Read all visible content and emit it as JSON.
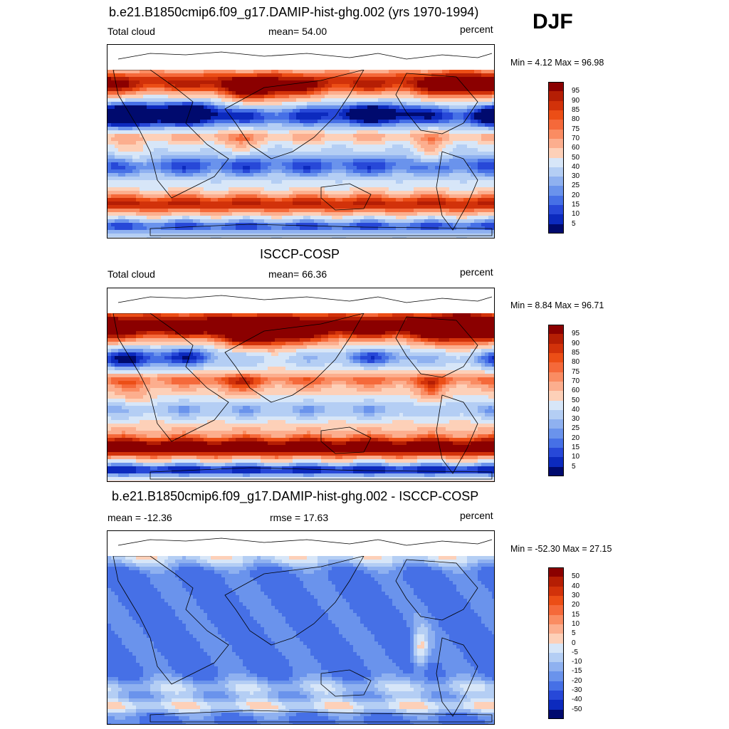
{
  "season": "DJF",
  "panels": [
    {
      "title": "b.e21.B1850cmip6.f09_g17.DAMIP-hist-ghg.002 (yrs 1970-1994)",
      "left_label": "Total cloud",
      "center_label": "mean=  54.00",
      "right_label": "percent",
      "minmax": "Min =   4.12 Max =  96.98",
      "colorbar_labels": [
        "95",
        "90",
        "85",
        "80",
        "75",
        "70",
        "60",
        "50",
        "40",
        "30",
        "25",
        "20",
        "15",
        "10",
        "5"
      ]
    },
    {
      "title": "ISCCP-COSP",
      "left_label": "Total cloud",
      "center_label": "mean=  66.36",
      "right_label": "percent",
      "minmax": "Min =   8.84 Max =  96.71",
      "colorbar_labels": [
        "95",
        "90",
        "85",
        "80",
        "75",
        "70",
        "60",
        "50",
        "40",
        "30",
        "25",
        "20",
        "15",
        "10",
        "5"
      ]
    },
    {
      "title": "b.e21.B1850cmip6.f09_g17.DAMIP-hist-ghg.002 - ISCCP-COSP",
      "left_label": "mean = -12.36",
      "center_label": "rmse =  17.63",
      "right_label": "percent",
      "minmax": "Min = -52.30 Max =  27.15",
      "colorbar_labels": [
        "50",
        "40",
        "30",
        "20",
        "15",
        "10",
        "5",
        "0",
        "-5",
        "-10",
        "-15",
        "-20",
        "-30",
        "-40",
        "-50"
      ]
    }
  ],
  "colors": {
    "scale": [
      "#8b0000",
      "#b51e04",
      "#d2320a",
      "#ec4e16",
      "#f5693a",
      "#fa8c62",
      "#fcae8e",
      "#fdd0b8",
      "#fef1e6",
      "#d7e6f8",
      "#b4cef4",
      "#8fb1f0",
      "#6a93ec",
      "#4670e6",
      "#2748d8",
      "#0c2abe",
      "#001a96",
      "#000a6e"
    ],
    "land_outline": "#000000"
  },
  "chart_data": [
    {
      "type": "heatmap",
      "title": "b.e21.B1850cmip6.f09_g17.DAMIP-hist-ghg.002 (yrs 1970-1994)",
      "variable": "Total cloud",
      "units": "percent",
      "mean": 54.0,
      "min": 4.12,
      "max": 96.98,
      "levels": [
        5,
        10,
        15,
        20,
        25,
        30,
        40,
        50,
        60,
        70,
        75,
        80,
        85,
        90,
        95
      ]
    },
    {
      "type": "heatmap",
      "title": "ISCCP-COSP",
      "variable": "Total cloud",
      "units": "percent",
      "mean": 66.36,
      "min": 8.84,
      "max": 96.71,
      "levels": [
        5,
        10,
        15,
        20,
        25,
        30,
        40,
        50,
        60,
        70,
        75,
        80,
        85,
        90,
        95
      ]
    },
    {
      "type": "heatmap",
      "title": "b.e21.B1850cmip6.f09_g17.DAMIP-hist-ghg.002 - ISCCP-COSP",
      "units": "percent",
      "mean": -12.36,
      "rmse": 17.63,
      "min": -52.3,
      "max": 27.15,
      "levels": [
        -50,
        -40,
        -30,
        -20,
        -15,
        -10,
        -5,
        0,
        5,
        10,
        15,
        20,
        30,
        40,
        50
      ]
    }
  ]
}
